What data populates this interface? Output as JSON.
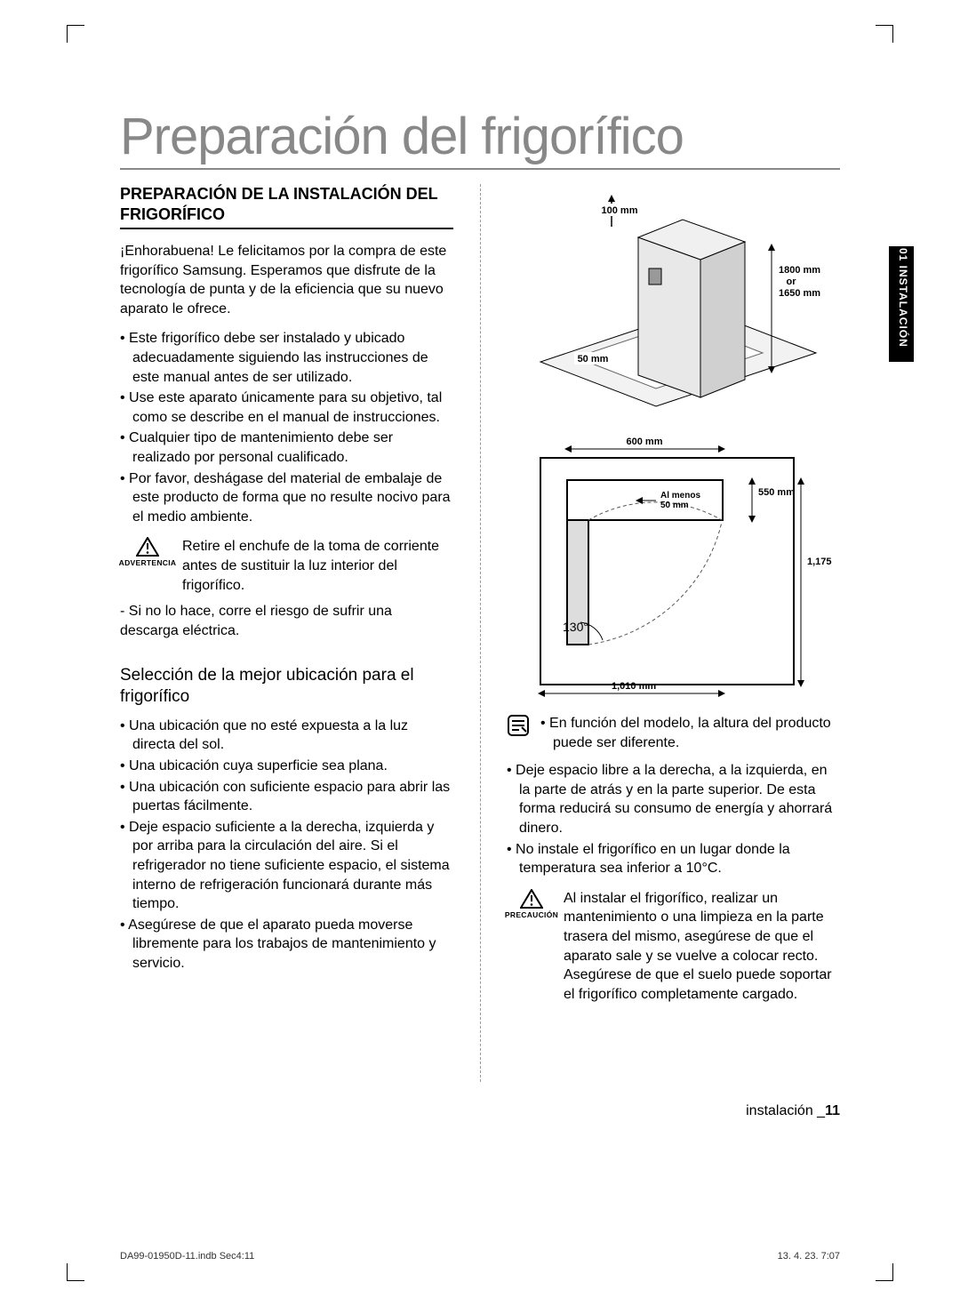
{
  "title": "Preparación del frigorífico",
  "side_tab": "01 INSTALACIÓN",
  "left": {
    "heading": "PREPARACIÓN DE LA INSTALACIÓN DEL FRIGORÍFICO",
    "intro": "¡Enhorabuena! Le felicitamos por la compra de este frigorífico Samsung. Esperamos que disfrute de la tecnología de punta y de la eficiencia que su nuevo aparato le ofrece.",
    "bullets1": [
      "Este frigorífico debe ser instalado y ubicado adecuadamente siguiendo las instrucciones de este manual antes de ser utilizado.",
      "Use este aparato únicamente para su objetivo, tal como se describe en el manual de instrucciones.",
      "Cualquier tipo de mantenimiento debe ser realizado por personal cualificado.",
      "Por favor, deshágase del material de embalaje de este producto de forma que no resulte nocivo para el medio ambiente."
    ],
    "warn_label": "ADVERTENCIA",
    "warn_text": "Retire el enchufe de la toma de corriente antes de sustituir la luz interior del frigorífico.",
    "warn_tail": "- Si no lo hace, corre el riesgo de sufrir una descarga eléctrica.",
    "subheading": "Selección de la mejor ubicación para el frigorífico",
    "bullets2": [
      "Una ubicación que no esté expuesta a la luz directa del sol.",
      "Una ubicación cuya superficie sea plana.",
      "Una ubicación con suficiente espacio para abrir las puertas fácilmente.",
      "Deje espacio suficiente a la derecha, izquierda y por arriba para la circulación del aire. Si el refrigerador no tiene suficiente espacio, el sistema interno de refrigeración funcionará durante más tiempo.",
      "Asegúrese de que el aparato pueda moverse libremente para los trabajos de mantenimiento y servicio."
    ]
  },
  "right": {
    "diagram1": {
      "top_clearance": "100 mm",
      "side_clearance": "50 mm",
      "height1": "1800 mm",
      "height_or": "or",
      "height2": "1650 mm"
    },
    "diagram2": {
      "width": "600 mm",
      "wall_gap": "Al menos\n50 mm",
      "depth_open": "550 mm",
      "total_depth": "1,175 mm",
      "angle": "130°",
      "total_width": "1,010 mm"
    },
    "note_bullet": "En función del modelo, la altura del producto puede ser diferente.",
    "bullets": [
      "Deje espacio libre a la derecha, a la izquierda, en la parte de atrás y en la parte superior. De esta forma reducirá su consumo de energía y ahorrará dinero.",
      "No instale el frigorífico en un lugar donde la temperatura sea inferior a 10°C."
    ],
    "caution_label": "PRECAUCIÓN",
    "caution_text": "Al instalar el frigorífico, realizar un mantenimiento o una limpieza en la parte trasera del mismo, asegúrese de que el aparato sale y se vuelve a colocar recto. Asegúrese de que el suelo puede soportar el frigorífico completamente cargado."
  },
  "footer": {
    "label": "instalación _",
    "num": "11"
  },
  "print": {
    "left": "DA99-01950D-11.indb   Sec4:11",
    "right": "13. 4. 23.     7:07"
  }
}
